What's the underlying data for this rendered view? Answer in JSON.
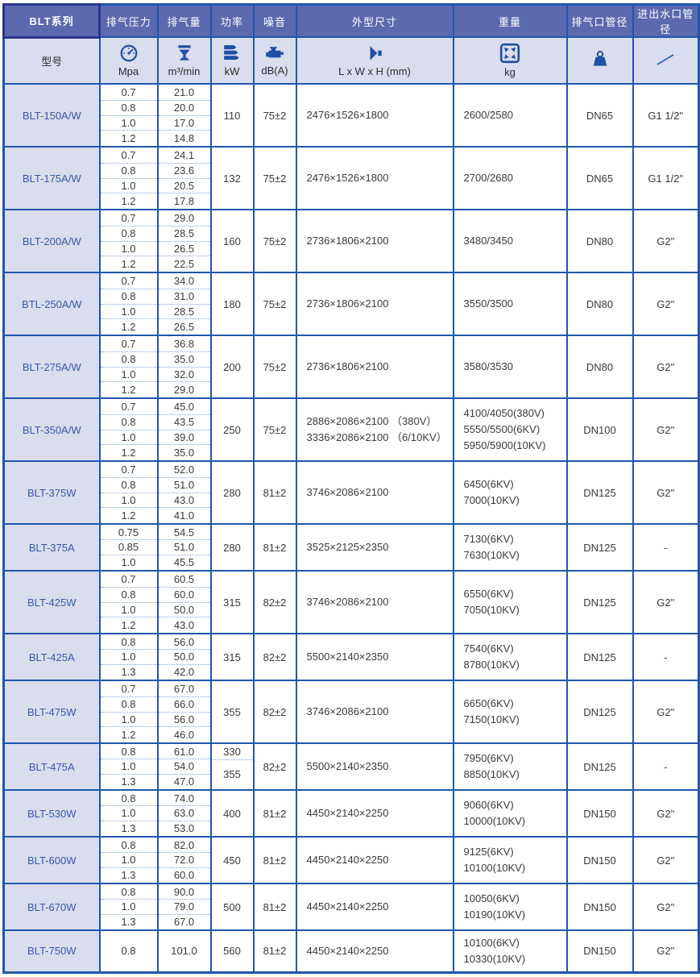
{
  "header": {
    "series_title": "BLT系列",
    "model_label": "型号",
    "columns": [
      {
        "key": "pressure",
        "label": "排气压力",
        "unit": "Mpa",
        "icon": "gauge-icon"
      },
      {
        "key": "volume",
        "label": "排气量",
        "unit": "m³/min",
        "icon": "flow-funnel-icon"
      },
      {
        "key": "power",
        "label": "功率",
        "unit": "kW",
        "icon": "energy-bars-icon"
      },
      {
        "key": "noise",
        "label": "噪音",
        "unit": "dB(A)",
        "icon": "motor-icon"
      },
      {
        "key": "dims",
        "label": "外型尺寸",
        "unit": "L x W x H (mm)",
        "icon": "speaker-dimension-icon"
      },
      {
        "key": "weight",
        "label": "重量",
        "unit": "kg",
        "icon": "expand-arrows-icon"
      },
      {
        "key": "outlet",
        "label": "排气口管径",
        "unit": "",
        "icon": "kettlebell-weight-icon"
      },
      {
        "key": "water",
        "label": "进出水口管径",
        "unit": "",
        "icon": "slash-icon"
      }
    ]
  },
  "colors": {
    "grid_blue": "#1f57ae",
    "header_band": "#5b69af",
    "lavender": "#dadded",
    "model_text": "#3557ac",
    "title_navy": "#1d2f8e",
    "data_text": "#3a3a3a",
    "dotted_separator": "#7da2da",
    "icon_blue": "#1d4fa5"
  },
  "rows": [
    {
      "model": "BLT-150A/W",
      "pressures": [
        "0.7",
        "0.8",
        "1.0",
        "1.2"
      ],
      "volumes": [
        "21.0",
        "20.0",
        "17.0",
        "14.8"
      ],
      "power": [
        "110"
      ],
      "noise": "75±2",
      "dims": [
        "2476×1526×1800"
      ],
      "weights": [
        "2600/2580"
      ],
      "outlet": "DN65",
      "water": "G1 1/2\""
    },
    {
      "model": "BLT-175A/W",
      "pressures": [
        "0.7",
        "0.8",
        "1.0",
        "1.2"
      ],
      "volumes": [
        "24.1",
        "23.6",
        "20.5",
        "17.8"
      ],
      "power": [
        "132"
      ],
      "noise": "75±2",
      "dims": [
        "2476×1526×1800"
      ],
      "weights": [
        "2700/2680"
      ],
      "outlet": "DN65",
      "water": "G1 1/2\""
    },
    {
      "model": "BLT-200A/W",
      "pressures": [
        "0.7",
        "0.8",
        "1.0",
        "1.2"
      ],
      "volumes": [
        "29.0",
        "28.5",
        "26.5",
        "22.5"
      ],
      "power": [
        "160"
      ],
      "noise": "75±2",
      "dims": [
        "2736×1806×2100"
      ],
      "weights": [
        "3480/3450"
      ],
      "outlet": "DN80",
      "water": "G2\""
    },
    {
      "model": "BTL-250A/W",
      "pressures": [
        "0.7",
        "0.8",
        "1.0",
        "1.2"
      ],
      "volumes": [
        "34.0",
        "31.0",
        "28.5",
        "26.5"
      ],
      "power": [
        "180"
      ],
      "noise": "75±2",
      "dims": [
        "2736×1806×2100"
      ],
      "weights": [
        "3550/3500"
      ],
      "outlet": "DN80",
      "water": "G2\""
    },
    {
      "model": "BLT-275A/W",
      "pressures": [
        "0.7",
        "0.8",
        "1.0",
        "1.2"
      ],
      "volumes": [
        "36.8",
        "35.0",
        "32.0",
        "29.0"
      ],
      "power": [
        "200"
      ],
      "noise": "75±2",
      "dims": [
        "2736×1806×2100"
      ],
      "weights": [
        "3580/3530"
      ],
      "outlet": "DN80",
      "water": "G2\""
    },
    {
      "model": "BLT-350A/W",
      "pressures": [
        "0.7",
        "0.8",
        "1.0",
        "1.2"
      ],
      "volumes": [
        "45.0",
        "43.5",
        "39.0",
        "35.0"
      ],
      "power": [
        "250"
      ],
      "noise": "75±2",
      "dims": [
        "2886×2086×2100 （380V）",
        "3336×2086×2100 （6/10KV）"
      ],
      "weights": [
        "4100/4050(380V)",
        "5550/5500(6KV)",
        "5950/5900(10KV)"
      ],
      "outlet": "DN100",
      "water": "G2\""
    },
    {
      "model": "BLT-375W",
      "pressures": [
        "0.7",
        "0.8",
        "1.0",
        "1.2"
      ],
      "volumes": [
        "52.0",
        "51.0",
        "43.0",
        "41.0"
      ],
      "power": [
        "280"
      ],
      "noise": "81±2",
      "dims": [
        "3746×2086×2100"
      ],
      "weights": [
        "6450(6KV)",
        "7000(10KV)"
      ],
      "outlet": "DN125",
      "water": "G2\""
    },
    {
      "model": "BLT-375A",
      "pressures": [
        "0.75",
        "0.85",
        "1.0"
      ],
      "volumes": [
        "54.5",
        "51.0",
        "45.5"
      ],
      "power": [
        "280"
      ],
      "noise": "81±2",
      "dims": [
        "3525×2125×2350"
      ],
      "weights": [
        "7130(6KV)",
        "7630(10KV)"
      ],
      "outlet": "DN125",
      "water": "-"
    },
    {
      "model": "BLT-425W",
      "pressures": [
        "0.7",
        "0.8",
        "1.0",
        "1.2"
      ],
      "volumes": [
        "60.5",
        "60.0",
        "50.0",
        "43.0"
      ],
      "power": [
        "315"
      ],
      "noise": "82±2",
      "dims": [
        "3746×2086×2100"
      ],
      "weights": [
        "6550(6KV)",
        "7050(10KV)"
      ],
      "outlet": "DN125",
      "water": "G2\""
    },
    {
      "model": "BLT-425A",
      "pressures": [
        "0.8",
        "1.0",
        "1.3"
      ],
      "volumes": [
        "56.0",
        "50.0",
        "42.0"
      ],
      "power": [
        "315"
      ],
      "noise": "82±2",
      "dims": [
        "5500×2140×2350"
      ],
      "weights": [
        "7540(6KV)",
        "8780(10KV)"
      ],
      "outlet": "DN125",
      "water": "-"
    },
    {
      "model": "BLT-475W",
      "pressures": [
        "0.7",
        "0.8",
        "1.0",
        "1.2"
      ],
      "volumes": [
        "67.0",
        "66.0",
        "56.0",
        "46.0"
      ],
      "power": [
        "355"
      ],
      "noise": "82±2",
      "dims": [
        "3746×2086×2100"
      ],
      "weights": [
        "6650(6KV)",
        "7150(10KV)"
      ],
      "outlet": "DN125",
      "water": "G2\""
    },
    {
      "model": "BLT-475A",
      "pressures": [
        "0.8",
        "1.0",
        "1.3"
      ],
      "volumes": [
        "61.0",
        "54.0",
        "47.0"
      ],
      "power": [
        "330",
        "355"
      ],
      "noise": "82±2",
      "dims": [
        "5500×2140×2350"
      ],
      "weights": [
        "7950(6KV)",
        "8850(10KV)"
      ],
      "outlet": "DN125",
      "water": "-"
    },
    {
      "model": "BLT-530W",
      "pressures": [
        "0.8",
        "1.0",
        "1.3"
      ],
      "volumes": [
        "74.0",
        "63.0",
        "53.0"
      ],
      "power": [
        "400"
      ],
      "noise": "81±2",
      "dims": [
        "4450×2140×2250"
      ],
      "weights": [
        "9060(6KV)",
        "10000(10KV)"
      ],
      "outlet": "DN150",
      "water": "G2\""
    },
    {
      "model": "BLT-600W",
      "pressures": [
        "0.8",
        "1.0",
        "1.3"
      ],
      "volumes": [
        "82.0",
        "72.0",
        "60.0"
      ],
      "power": [
        "450"
      ],
      "noise": "81±2",
      "dims": [
        "4450×2140×2250"
      ],
      "weights": [
        "9125(6KV)",
        "10100(10KV)"
      ],
      "outlet": "DN150",
      "water": "G2\""
    },
    {
      "model": "BLT-670W",
      "pressures": [
        "0.8",
        "1.0",
        "1.3"
      ],
      "volumes": [
        "90.0",
        "79.0",
        "67.0"
      ],
      "power": [
        "500"
      ],
      "noise": "81±2",
      "dims": [
        "4450×2140×2250"
      ],
      "weights": [
        "10050(6KV)",
        "10190(10KV)"
      ],
      "outlet": "DN150",
      "water": "G2\""
    },
    {
      "model": "BLT-750W",
      "pressures": [
        "0.8"
      ],
      "volumes": [
        "101.0"
      ],
      "power": [
        "560"
      ],
      "noise": "81±2",
      "dims": [
        "4450×2140×2250"
      ],
      "weights": [
        "10100(6KV)",
        "10330(10KV)"
      ],
      "outlet": "DN150",
      "water": "G2\""
    }
  ]
}
